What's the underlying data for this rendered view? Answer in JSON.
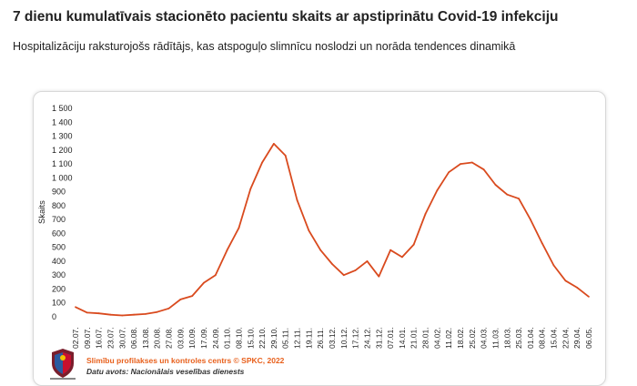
{
  "page": {
    "title": "7 dienu kumulatīvais stacionēto pacientu skaits ar apstiprinātu Covid-19 infekciju",
    "subtitle": "Hospitalizāciju raksturojošs rādītājs, kas atspoguļo slimnīcu noslodzi un norāda tendences dinamikā"
  },
  "footer": {
    "credit": "Slimību profilakses un kontroles centrs © SPKC, 2022",
    "source": "Datu avots: Nacionālais veselības dienests",
    "logo_icon": "latvia-coat-of-arms-icon"
  },
  "colors": {
    "line": "#d94a1e",
    "credit": "#e8601c"
  },
  "chart_data": {
    "type": "line",
    "ylabel": "Skaits",
    "ylim": [
      0,
      1500
    ],
    "yticks": [
      "0",
      "100",
      "200",
      "300",
      "400",
      "500",
      "600",
      "700",
      "800",
      "900",
      "1 000",
      "1 100",
      "1 200",
      "1 300",
      "1 400",
      "1 500"
    ],
    "ytick_values": [
      0,
      100,
      200,
      300,
      400,
      500,
      600,
      700,
      800,
      900,
      1000,
      1100,
      1200,
      1300,
      1400,
      1500
    ],
    "x_categories": [
      "02.07.",
      "09.07.",
      "16.07.",
      "23.07.",
      "30.07.",
      "06.08.",
      "13.08.",
      "20.08.",
      "27.08.",
      "03.09.",
      "10.09.",
      "17.09.",
      "24.09.",
      "01.10.",
      "08.10.",
      "15.10.",
      "22.10.",
      "29.10.",
      "05.11.",
      "12.11.",
      "19.11.",
      "26.11.",
      "03.12.",
      "10.12.",
      "17.12.",
      "24.12.",
      "31.12.",
      "07.01.",
      "14.01.",
      "21.01.",
      "28.01.",
      "04.02.",
      "11.02.",
      "18.02.",
      "25.02.",
      "04.03.",
      "11.03.",
      "18.03.",
      "25.03.",
      "01.04.",
      "08.04.",
      "15.04.",
      "22.04.",
      "29.04.",
      "06.05."
    ],
    "grid": false,
    "legend": "none",
    "series": [
      {
        "x": [
          0,
          1,
          2,
          3,
          4,
          5,
          6,
          7,
          8,
          9,
          10,
          11,
          12,
          13,
          14,
          15,
          16,
          17,
          18,
          19,
          20,
          21,
          22,
          23,
          24,
          25,
          26,
          27,
          28,
          29,
          30,
          31,
          32,
          33,
          34,
          35,
          36,
          37,
          38,
          39,
          40,
          41,
          42,
          43,
          44
        ],
        "values": [
          70,
          30,
          25,
          15,
          10,
          15,
          20,
          35,
          60,
          125,
          150,
          245,
          300,
          480,
          640,
          920,
          1110,
          1245,
          1160,
          840,
          620,
          480,
          380,
          300,
          335,
          400,
          290,
          480,
          430,
          520,
          740,
          910,
          1040,
          1100,
          1110,
          1060,
          950,
          880,
          850,
          700,
          530,
          370,
          260,
          210,
          145
        ]
      }
    ]
  }
}
